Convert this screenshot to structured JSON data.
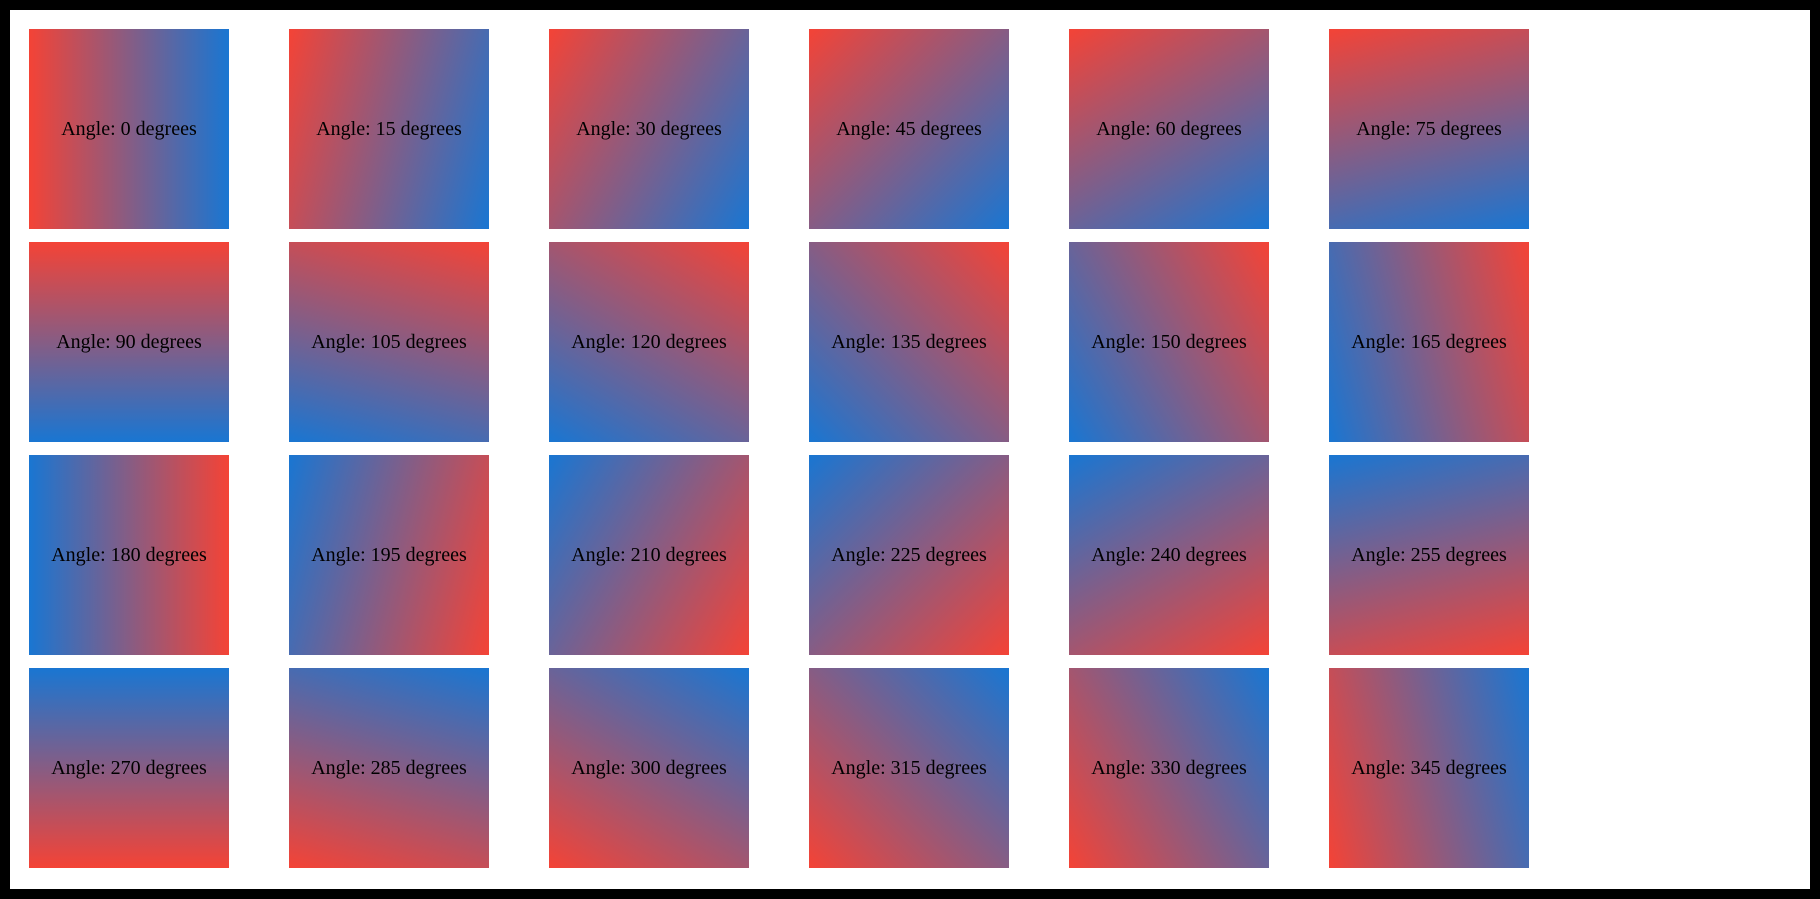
{
  "page": {
    "background_color": "#ffffff",
    "border_color": "#000000",
    "text_color": "#000000"
  },
  "gradient": {
    "start_color": "#f44336",
    "end_color": "#1976d2"
  },
  "tiles": [
    {
      "angle": 0,
      "label": "Angle: 0 degrees"
    },
    {
      "angle": 15,
      "label": "Angle: 15 degrees"
    },
    {
      "angle": 30,
      "label": "Angle: 30 degrees"
    },
    {
      "angle": 45,
      "label": "Angle: 45 degrees"
    },
    {
      "angle": 60,
      "label": "Angle: 60 degrees"
    },
    {
      "angle": 75,
      "label": "Angle: 75 degrees"
    },
    {
      "angle": 90,
      "label": "Angle: 90 degrees"
    },
    {
      "angle": 105,
      "label": "Angle: 105 degrees"
    },
    {
      "angle": 120,
      "label": "Angle: 120 degrees"
    },
    {
      "angle": 135,
      "label": "Angle: 135 degrees"
    },
    {
      "angle": 150,
      "label": "Angle: 150 degrees"
    },
    {
      "angle": 165,
      "label": "Angle: 165 degrees"
    },
    {
      "angle": 180,
      "label": "Angle: 180 degrees"
    },
    {
      "angle": 195,
      "label": "Angle: 195 degrees"
    },
    {
      "angle": 210,
      "label": "Angle: 210 degrees"
    },
    {
      "angle": 225,
      "label": "Angle: 225 degrees"
    },
    {
      "angle": 240,
      "label": "Angle: 240 degrees"
    },
    {
      "angle": 255,
      "label": "Angle: 255 degrees"
    },
    {
      "angle": 270,
      "label": "Angle: 270 degrees"
    },
    {
      "angle": 285,
      "label": "Angle: 285 degrees"
    },
    {
      "angle": 300,
      "label": "Angle: 300 degrees"
    },
    {
      "angle": 315,
      "label": "Angle: 315 degrees"
    },
    {
      "angle": 330,
      "label": "Angle: 330 degrees"
    },
    {
      "angle": 345,
      "label": "Angle: 345 degrees"
    }
  ]
}
